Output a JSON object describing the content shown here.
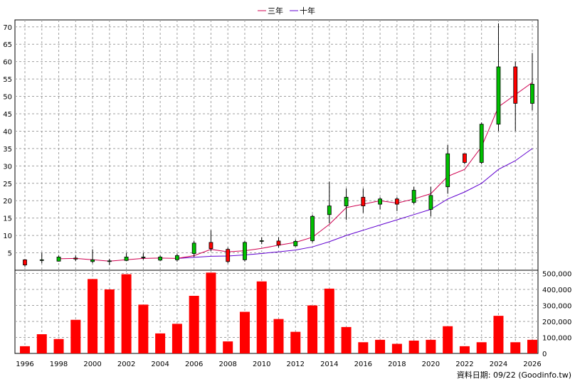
{
  "chart_data": {
    "type": "candlestick",
    "legend": [
      {
        "name": "三年",
        "color": "#d00050"
      },
      {
        "name": "十年",
        "color": "#6000d0"
      }
    ],
    "source_label": "資料日期: 09/22  (Goodinfo.tw)",
    "x_tick_labels": [
      "1996",
      "1998",
      "2000",
      "2002",
      "2004",
      "2006",
      "2008",
      "2010",
      "2012",
      "2014",
      "2016",
      "2018",
      "2020",
      "2022",
      "2024",
      "2026"
    ],
    "price_axis": {
      "ylim": [
        0,
        72
      ],
      "ticks": [
        "5",
        "10",
        "15",
        "20",
        "25",
        "30",
        "35",
        "40",
        "45",
        "50",
        "55",
        "60",
        "65",
        "70"
      ],
      "grid": true
    },
    "volume_axis": {
      "ylim": [
        0,
        520000
      ],
      "ticks": [
        "0",
        "100,000",
        "200,000",
        "300,000",
        "400,000",
        "500,000"
      ]
    },
    "years": [
      1996,
      1997,
      1998,
      1999,
      2000,
      2001,
      2002,
      2003,
      2004,
      2005,
      2006,
      2007,
      2008,
      2009,
      2010,
      2011,
      2012,
      2013,
      2014,
      2015,
      2016,
      2017,
      2018,
      2019,
      2020,
      2021,
      2022,
      2023,
      2024,
      2025,
      2026
    ],
    "candles": [
      {
        "open": 1.5,
        "high": 3.2,
        "low": 1.0,
        "close": 3.0
      },
      {
        "open": 3.0,
        "high": 5.0,
        "low": 2.0,
        "close": 3.0
      },
      {
        "open": 3.8,
        "high": 4.2,
        "low": 2.5,
        "close": 2.6
      },
      {
        "open": 3.2,
        "high": 4.2,
        "low": 2.6,
        "close": 3.5
      },
      {
        "open": 3.0,
        "high": 6.0,
        "low": 2.0,
        "close": 2.5
      },
      {
        "open": 2.7,
        "high": 3.3,
        "low": 1.5,
        "close": 2.5
      },
      {
        "open": 3.8,
        "high": 5.0,
        "low": 2.6,
        "close": 2.8
      },
      {
        "open": 3.8,
        "high": 5.0,
        "low": 3.0,
        "close": 3.7
      },
      {
        "open": 3.8,
        "high": 4.2,
        "low": 2.6,
        "close": 2.9
      },
      {
        "open": 4.2,
        "high": 4.8,
        "low": 2.5,
        "close": 3.0
      },
      {
        "open": 7.8,
        "high": 8.5,
        "low": 3.8,
        "close": 4.8
      },
      {
        "open": 6.2,
        "high": 11.5,
        "low": 5.5,
        "close": 8.0
      },
      {
        "open": 2.5,
        "high": 6.5,
        "low": 2.0,
        "close": 6.0
      },
      {
        "open": 8.0,
        "high": 8.5,
        "low": 2.5,
        "close": 3.0
      },
      {
        "open": 8.5,
        "high": 9.5,
        "low": 7.5,
        "close": 8.3
      },
      {
        "open": 7.2,
        "high": 9.5,
        "low": 6.5,
        "close": 8.4
      },
      {
        "open": 8.3,
        "high": 8.8,
        "low": 6.8,
        "close": 7.0
      },
      {
        "open": 15.5,
        "high": 16.0,
        "low": 8.0,
        "close": 8.5
      },
      {
        "open": 18.5,
        "high": 25.5,
        "low": 13.5,
        "close": 16.0
      },
      {
        "open": 21.0,
        "high": 23.5,
        "low": 14.5,
        "close": 18.5
      },
      {
        "open": 18.5,
        "high": 23.5,
        "low": 16.5,
        "close": 21.0
      },
      {
        "open": 20.5,
        "high": 21.0,
        "low": 17.5,
        "close": 19.0
      },
      {
        "open": 19.0,
        "high": 21.0,
        "low": 17.0,
        "close": 20.5
      },
      {
        "open": 23.0,
        "high": 24.0,
        "low": 19.0,
        "close": 19.5
      },
      {
        "open": 21.5,
        "high": 24.0,
        "low": 15.5,
        "close": 17.5
      },
      {
        "open": 33.5,
        "high": 36.0,
        "low": 22.0,
        "close": 24.0
      },
      {
        "open": 31.0,
        "high": 33.5,
        "low": 30.5,
        "close": 33.5
      },
      {
        "open": 42.0,
        "high": 42.5,
        "low": 30.5,
        "close": 31.0
      },
      {
        "open": 58.5,
        "high": 71.0,
        "low": 40.0,
        "close": 42.0
      },
      {
        "open": 48.0,
        "high": 60.0,
        "low": 40.0,
        "close": 58.5
      },
      {
        "open": 53.5,
        "high": 62.5,
        "low": 46.0,
        "close": 48.0
      }
    ],
    "ma3": [
      null,
      null,
      3.3,
      3.4,
      3.0,
      2.6,
      3.0,
      3.4,
      3.5,
      3.4,
      4.2,
      6.0,
      5.3,
      5.6,
      6.3,
      7.2,
      8.0,
      9.5,
      13.2,
      18.0,
      19.0,
      20.0,
      19.3,
      20.5,
      22.0,
      27.0,
      29.0,
      35.5,
      47.0,
      50.5,
      54.0
    ],
    "ma10": [
      null,
      null,
      null,
      null,
      null,
      null,
      null,
      null,
      null,
      3.4,
      3.7,
      4.0,
      4.1,
      4.4,
      4.8,
      5.3,
      5.8,
      6.7,
      8.2,
      10.0,
      11.5,
      13.0,
      14.5,
      16.0,
      17.5,
      20.5,
      22.5,
      25.0,
      29.0,
      31.5,
      35.0
    ],
    "volume": [
      45000,
      120000,
      90000,
      210000,
      465000,
      400000,
      495000,
      305000,
      125000,
      185000,
      360000,
      505000,
      75000,
      260000,
      450000,
      215000,
      135000,
      300000,
      405000,
      165000,
      70000,
      85000,
      60000,
      80000,
      85000,
      170000,
      45000,
      70000,
      235000,
      70000,
      85000
    ]
  }
}
